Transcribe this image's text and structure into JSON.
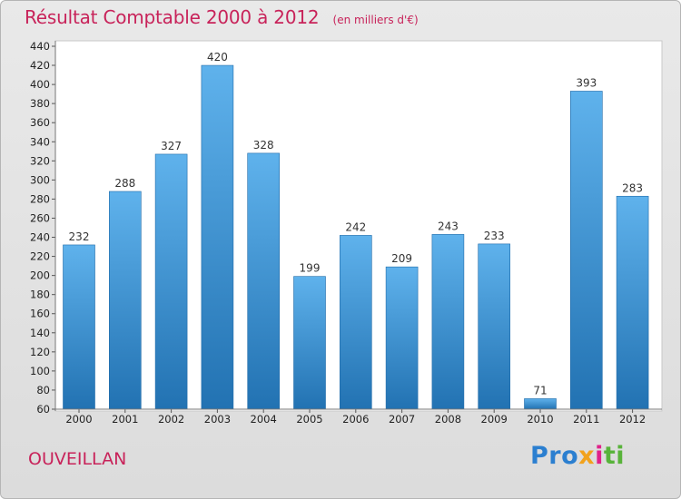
{
  "title": "Résultat Comptable 2000 à 2012",
  "subtitle": "(en milliers d'€)",
  "commune": "OUVEILLAN",
  "logo": [
    "Pro",
    "x",
    "i",
    "ti"
  ],
  "colors": {
    "title": "#c8235a",
    "bar_light": "#5fb2ec",
    "bar_dark": "#2272b2"
  },
  "chart_data": {
    "type": "bar",
    "title": "Résultat Comptable 2000 à 2012",
    "xlabel": "",
    "ylabel": "",
    "categories": [
      "2000",
      "2001",
      "2002",
      "2003",
      "2004",
      "2005",
      "2006",
      "2007",
      "2008",
      "2009",
      "2010",
      "2011",
      "2012"
    ],
    "values": [
      232,
      288,
      327,
      420,
      328,
      199,
      242,
      209,
      243,
      233,
      71,
      393,
      283
    ],
    "ylim": [
      60,
      440
    ],
    "yticks": [
      60,
      80,
      100,
      120,
      140,
      160,
      180,
      200,
      220,
      240,
      260,
      280,
      300,
      320,
      340,
      360,
      380,
      400,
      420,
      440
    ],
    "grid": false,
    "legend": "none"
  }
}
